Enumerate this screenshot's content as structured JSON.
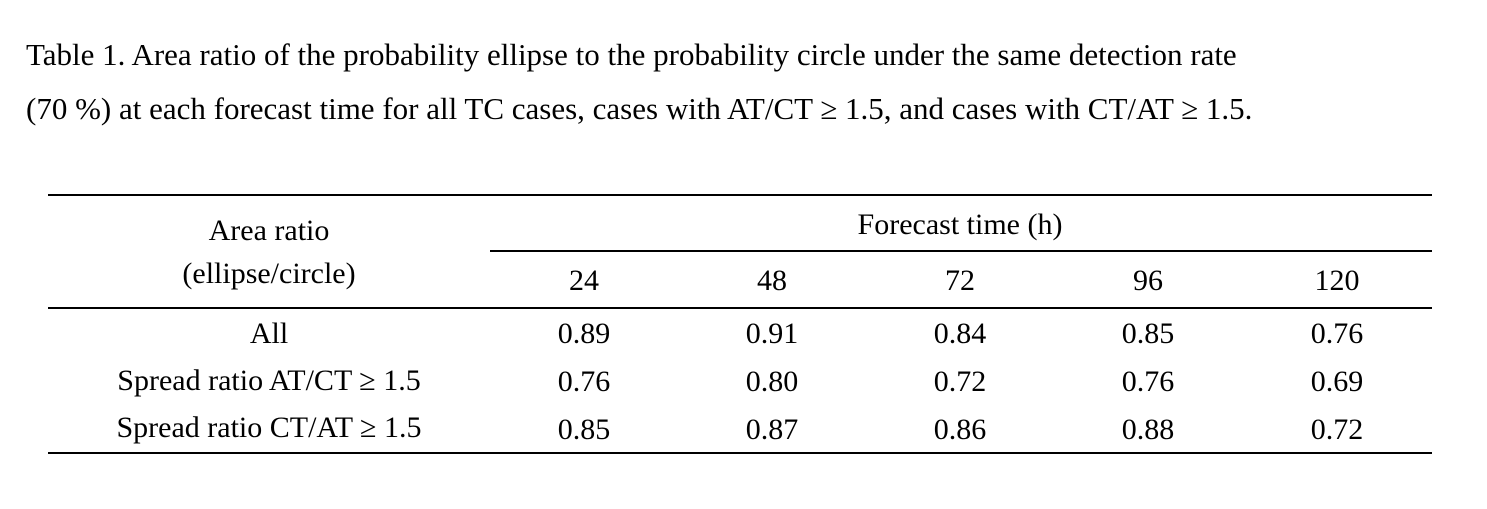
{
  "caption": {
    "line1": "Table 1. Area ratio of the probability ellipse to the probability circle under the same detection rate",
    "line2": "(70 %) at each forecast time for all TC cases, cases with AT/CT ≥ 1.5, and cases with CT/AT ≥ 1.5."
  },
  "table": {
    "row_header_line1": "Area ratio",
    "row_header_line2": "(ellipse/circle)",
    "group_header": "Forecast time (h)",
    "columns": [
      "24",
      "48",
      "72",
      "96",
      "120"
    ],
    "rows": [
      {
        "label": "All",
        "values": [
          "0.89",
          "0.91",
          "0.84",
          "0.85",
          "0.76"
        ]
      },
      {
        "label": "Spread ratio AT/CT ≥ 1.5",
        "values": [
          "0.76",
          "0.80",
          "0.72",
          "0.76",
          "0.69"
        ]
      },
      {
        "label": "Spread ratio CT/AT ≥ 1.5",
        "values": [
          "0.85",
          "0.87",
          "0.86",
          "0.88",
          "0.72"
        ]
      }
    ]
  }
}
